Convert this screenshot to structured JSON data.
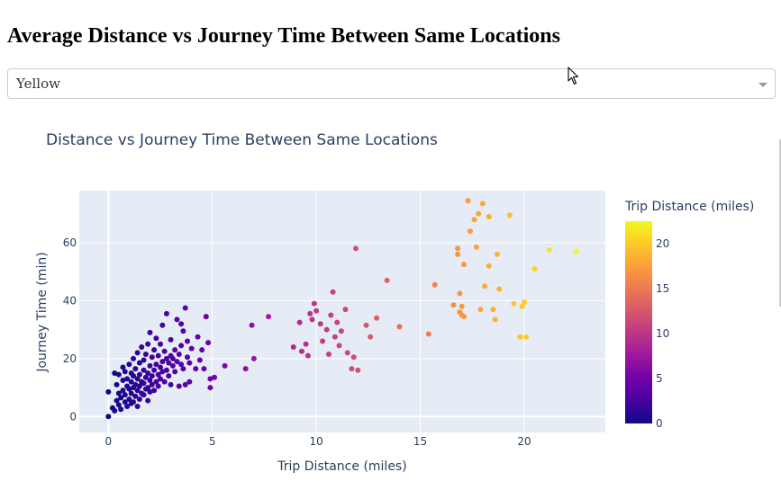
{
  "page": {
    "heading": "Average Distance vs Journey Time Between Same Locations",
    "dropdown": {
      "value": "Yellow"
    }
  },
  "chart_data": {
    "type": "scatter",
    "title": "Distance vs Journey Time Between Same Locations",
    "xlabel": "Trip Distance (miles)",
    "ylabel": "Journey Time (min)",
    "xlim": [
      -1.4,
      23.9
    ],
    "ylim": [
      -5.5,
      78
    ],
    "xticks": [
      0,
      5,
      10,
      15,
      20
    ],
    "yticks": [
      0,
      20,
      40,
      60
    ],
    "grid": true,
    "colorbar": {
      "title": "Trip Distance (miles)",
      "range": [
        0,
        22.5
      ],
      "ticks": [
        0,
        5,
        10,
        15,
        20
      ],
      "colorscale": [
        "#0d0887",
        "#46039f",
        "#7201a8",
        "#9c179e",
        "#bd3786",
        "#d8576b",
        "#ed7953",
        "#fb9f3a",
        "#fdca26",
        "#f0f921"
      ]
    },
    "background": "#e5ecf6",
    "points": [
      [
        0.0,
        0.0
      ],
      [
        0.0,
        8.5
      ],
      [
        0.2,
        3.0
      ],
      [
        0.3,
        2.0
      ],
      [
        0.3,
        15.0
      ],
      [
        0.4,
        5.5
      ],
      [
        0.4,
        11.0
      ],
      [
        0.5,
        4.0
      ],
      [
        0.5,
        8.0
      ],
      [
        0.5,
        14.5
      ],
      [
        0.6,
        2.5
      ],
      [
        0.6,
        6.5
      ],
      [
        0.7,
        9.0
      ],
      [
        0.7,
        12.5
      ],
      [
        0.7,
        17.0
      ],
      [
        0.8,
        5.0
      ],
      [
        0.8,
        7.5
      ],
      [
        0.8,
        15.5
      ],
      [
        0.9,
        3.5
      ],
      [
        0.9,
        10.5
      ],
      [
        0.9,
        13.0
      ],
      [
        1.0,
        6.0
      ],
      [
        1.0,
        9.5
      ],
      [
        1.0,
        18.0
      ],
      [
        1.1,
        4.5
      ],
      [
        1.1,
        8.0
      ],
      [
        1.1,
        12.0
      ],
      [
        1.1,
        15.0
      ],
      [
        1.2,
        5.0
      ],
      [
        1.2,
        10.0
      ],
      [
        1.2,
        14.0
      ],
      [
        1.2,
        20.0
      ],
      [
        1.3,
        7.0
      ],
      [
        1.3,
        11.0
      ],
      [
        1.3,
        16.5
      ],
      [
        1.4,
        3.5
      ],
      [
        1.4,
        9.0
      ],
      [
        1.4,
        13.0
      ],
      [
        1.4,
        22.0
      ],
      [
        1.5,
        6.0
      ],
      [
        1.5,
        10.5
      ],
      [
        1.5,
        14.5
      ],
      [
        1.5,
        18.5
      ],
      [
        1.6,
        8.0
      ],
      [
        1.6,
        12.0
      ],
      [
        1.6,
        24.0
      ],
      [
        1.7,
        7.5
      ],
      [
        1.7,
        11.5
      ],
      [
        1.7,
        16.0
      ],
      [
        1.7,
        19.5
      ],
      [
        1.8,
        9.5
      ],
      [
        1.8,
        13.5
      ],
      [
        1.8,
        21.5
      ],
      [
        1.9,
        5.5
      ],
      [
        1.9,
        10.0
      ],
      [
        1.9,
        15.0
      ],
      [
        1.9,
        25.0
      ],
      [
        2.0,
        8.5
      ],
      [
        2.0,
        12.5
      ],
      [
        2.0,
        17.5
      ],
      [
        2.0,
        29.0
      ],
      [
        2.1,
        11.0
      ],
      [
        2.1,
        14.0
      ],
      [
        2.1,
        20.5
      ],
      [
        2.2,
        9.0
      ],
      [
        2.2,
        16.0
      ],
      [
        2.2,
        23.0
      ],
      [
        2.3,
        12.0
      ],
      [
        2.3,
        18.0
      ],
      [
        2.3,
        27.0
      ],
      [
        2.4,
        10.5
      ],
      [
        2.4,
        14.5
      ],
      [
        2.4,
        21.0
      ],
      [
        2.5,
        13.0
      ],
      [
        2.5,
        17.0
      ],
      [
        2.5,
        25.0
      ],
      [
        2.6,
        15.5
      ],
      [
        2.6,
        19.0
      ],
      [
        2.6,
        31.5
      ],
      [
        2.7,
        12.0
      ],
      [
        2.7,
        22.5
      ],
      [
        2.8,
        16.0
      ],
      [
        2.8,
        20.0
      ],
      [
        2.8,
        35.5
      ],
      [
        2.9,
        14.0
      ],
      [
        2.9,
        18.5
      ],
      [
        3.0,
        11.0
      ],
      [
        3.0,
        21.0
      ],
      [
        3.0,
        26.5
      ],
      [
        3.1,
        17.5
      ],
      [
        3.1,
        20.0
      ],
      [
        3.2,
        15.5
      ],
      [
        3.2,
        23.0
      ],
      [
        3.3,
        19.0
      ],
      [
        3.3,
        33.5
      ],
      [
        3.4,
        10.5
      ],
      [
        3.4,
        21.5
      ],
      [
        3.5,
        18.0
      ],
      [
        3.5,
        24.5
      ],
      [
        3.5,
        32.0
      ],
      [
        3.6,
        16.5
      ],
      [
        3.6,
        29.5
      ],
      [
        3.7,
        11.0
      ],
      [
        3.7,
        37.5
      ],
      [
        3.8,
        20.5
      ],
      [
        3.8,
        26.0
      ],
      [
        3.9,
        18.5
      ],
      [
        3.9,
        12.0
      ],
      [
        4.0,
        23.5
      ],
      [
        4.2,
        16.5
      ],
      [
        4.3,
        27.5
      ],
      [
        4.4,
        19.5
      ],
      [
        4.5,
        23.0
      ],
      [
        4.6,
        16.5
      ],
      [
        4.7,
        34.5
      ],
      [
        4.8,
        25.5
      ],
      [
        4.9,
        13.0
      ],
      [
        4.9,
        10.0
      ],
      [
        5.1,
        13.5
      ],
      [
        5.6,
        17.5
      ],
      [
        6.6,
        16.5
      ],
      [
        7.0,
        20.0
      ],
      [
        6.9,
        31.5
      ],
      [
        7.7,
        34.5
      ],
      [
        8.9,
        24.0
      ],
      [
        9.2,
        32.5
      ],
      [
        9.3,
        22.5
      ],
      [
        9.5,
        25.0
      ],
      [
        9.6,
        21.0
      ],
      [
        9.7,
        35.5
      ],
      [
        9.8,
        33.5
      ],
      [
        9.9,
        39.0
      ],
      [
        10.0,
        36.5
      ],
      [
        10.2,
        32.0
      ],
      [
        10.3,
        26.0
      ],
      [
        10.5,
        30.0
      ],
      [
        10.6,
        21.5
      ],
      [
        10.7,
        35.0
      ],
      [
        10.8,
        43.0
      ],
      [
        10.9,
        27.5
      ],
      [
        11.0,
        32.5
      ],
      [
        11.1,
        24.5
      ],
      [
        11.2,
        29.5
      ],
      [
        11.4,
        37.0
      ],
      [
        11.5,
        22.0
      ],
      [
        11.7,
        16.5
      ],
      [
        11.8,
        20.5
      ],
      [
        11.9,
        58.0
      ],
      [
        12.0,
        16.0
      ],
      [
        12.4,
        31.5
      ],
      [
        12.6,
        27.5
      ],
      [
        12.9,
        34.0
      ],
      [
        13.4,
        47.0
      ],
      [
        14.0,
        31.0
      ],
      [
        15.4,
        28.5
      ],
      [
        15.7,
        45.5
      ],
      [
        16.6,
        38.5
      ],
      [
        16.8,
        56.0
      ],
      [
        16.8,
        58.0
      ],
      [
        16.9,
        42.5
      ],
      [
        16.9,
        36.0
      ],
      [
        17.0,
        38.0
      ],
      [
        17.0,
        35.0
      ],
      [
        17.1,
        52.5
      ],
      [
        17.1,
        34.5
      ],
      [
        17.3,
        74.5
      ],
      [
        17.4,
        64.0
      ],
      [
        17.6,
        68.0
      ],
      [
        17.7,
        58.5
      ],
      [
        17.8,
        70.0
      ],
      [
        17.9,
        37.0
      ],
      [
        18.0,
        73.5
      ],
      [
        18.1,
        45.0
      ],
      [
        18.3,
        69.0
      ],
      [
        18.3,
        52.0
      ],
      [
        18.5,
        37.0
      ],
      [
        18.6,
        33.5
      ],
      [
        18.7,
        56.0
      ],
      [
        18.8,
        44.0
      ],
      [
        19.3,
        69.5
      ],
      [
        19.5,
        39.0
      ],
      [
        19.8,
        27.5
      ],
      [
        19.9,
        38.0
      ],
      [
        20.0,
        39.5
      ],
      [
        20.1,
        27.5
      ],
      [
        20.5,
        51.0
      ],
      [
        21.2,
        57.5
      ],
      [
        22.5,
        57.0
      ]
    ]
  }
}
